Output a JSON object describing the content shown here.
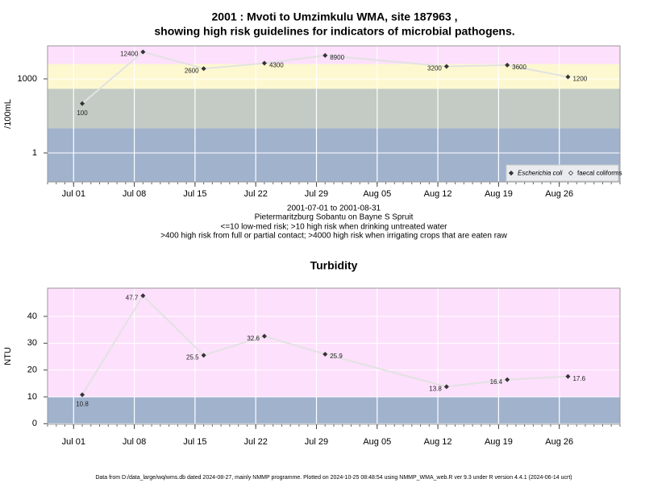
{
  "chart_data": [
    {
      "type": "line",
      "title": "2001 : Mvoti to Umzimkulu WMA, site 187963 ,",
      "subtitle": "showing high risk guidelines for indicators of microbial pathogens.",
      "ylabel": "/100mL",
      "log_scale": true,
      "x": [
        "2001-07-02",
        "2001-07-09",
        "2001-07-16",
        "2001-07-23",
        "2001-07-30",
        "2001-08-13",
        "2001-08-20",
        "2001-08-27"
      ],
      "xlim": [
        "2001-06-28",
        "2001-09-02"
      ],
      "xticks": [
        {
          "value": "2001-07-01",
          "label": "Jul 01"
        },
        {
          "value": "2001-07-08",
          "label": "Jul 08"
        },
        {
          "value": "2001-07-15",
          "label": "Jul 15"
        },
        {
          "value": "2001-07-22",
          "label": "Jul 22"
        },
        {
          "value": "2001-07-29",
          "label": "Jul 29"
        },
        {
          "value": "2001-08-05",
          "label": "Aug 05"
        },
        {
          "value": "2001-08-12",
          "label": "Aug 12"
        },
        {
          "value": "2001-08-19",
          "label": "Aug 19"
        },
        {
          "value": "2001-08-26",
          "label": "Aug 26"
        }
      ],
      "ylim": [
        0.067,
        21700
      ],
      "yticks": [
        1,
        1000
      ],
      "band_breaks": [
        10,
        400,
        4000
      ],
      "band_colors": [
        "#a0b2cc",
        "#c3cbc4",
        "#fdf8d0",
        "#fde0fc"
      ],
      "series": [
        {
          "name": "Escherichia coli",
          "color": "#333333",
          "line_color": "#e2e2e2",
          "values": [
            100,
            12400,
            2600,
            4300,
            8900,
            3200,
            3600,
            1200
          ]
        },
        {
          "name": "faecal coliforms",
          "color": "#333333",
          "line_color": "#e2e2e2",
          "values": [
            null,
            null,
            null,
            null,
            null,
            null,
            null,
            null
          ]
        }
      ],
      "legend": "bottom-right",
      "notes": [
        "2001-07-01 to 2001-08-31",
        "Pietermaritzburg Sobantu on Bayne S Spruit",
        "<=10 low-med risk; >10 high risk when drinking untreated water",
        ">400 high risk from full or partial contact; >4000 high risk when irrigating crops that are eaten raw"
      ]
    },
    {
      "type": "line",
      "title": "Turbidity",
      "ylabel": "NTU",
      "log_scale": false,
      "x": [
        "2001-07-02",
        "2001-07-09",
        "2001-07-16",
        "2001-07-23",
        "2001-07-30",
        "2001-08-13",
        "2001-08-20",
        "2001-08-27"
      ],
      "xlim": [
        "2001-06-28",
        "2001-09-02"
      ],
      "xticks": [
        {
          "value": "2001-07-01",
          "label": "Jul 01"
        },
        {
          "value": "2001-07-08",
          "label": "Jul 08"
        },
        {
          "value": "2001-07-15",
          "label": "Jul 15"
        },
        {
          "value": "2001-07-22",
          "label": "Jul 22"
        },
        {
          "value": "2001-07-29",
          "label": "Jul 29"
        },
        {
          "value": "2001-08-05",
          "label": "Aug 05"
        },
        {
          "value": "2001-08-12",
          "label": "Aug 12"
        },
        {
          "value": "2001-08-19",
          "label": "Aug 19"
        },
        {
          "value": "2001-08-26",
          "label": "Aug 26"
        }
      ],
      "ylim": [
        -0.2,
        50.5
      ],
      "yticks": [
        0,
        10,
        20,
        30,
        40
      ],
      "band_breaks": [
        10
      ],
      "band_colors": [
        "#a0b2cc",
        "#fde0fc"
      ],
      "series": [
        {
          "name": "Turbidity",
          "color": "#333333",
          "line_color": "#e2e2e2",
          "values": [
            10.8,
            47.7,
            25.5,
            32.6,
            25.9,
            13.8,
            16.4,
            17.6
          ]
        }
      ]
    }
  ],
  "footer": "Data from D:/data_large/wq/wms.db dated 2024-08-27, mainly NMMP programme. Plotted on 2024-10-25 08:48:54 using NMMP_WMA_web.R ver 9.3 under R version 4.4.1 (2024-06-14 ucrt)"
}
